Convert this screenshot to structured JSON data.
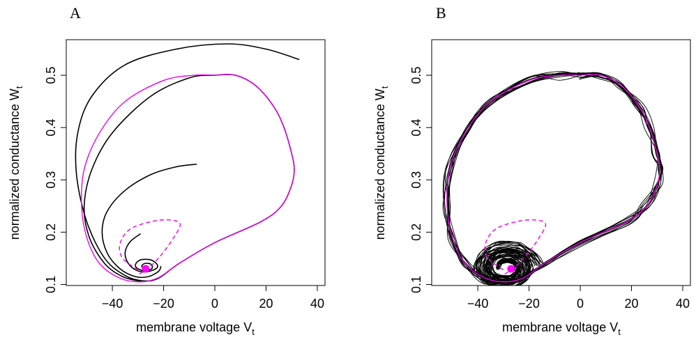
{
  "chart_data": [
    {
      "panel": "A",
      "type": "line",
      "xlabel": "membrane voltage",
      "xlabel_sub": "t",
      "ylabel": "normalized conductance",
      "ylabel_sub": "t",
      "xlim": [
        -58,
        43
      ],
      "ylim": [
        0.098,
        0.568
      ],
      "x_ticks": [
        -40,
        -20,
        0,
        20,
        40
      ],
      "x_tick_labels": [
        "−40",
        "−20",
        "0",
        "20",
        "40"
      ],
      "y_ticks": [
        0.1,
        0.2,
        0.3,
        0.4,
        0.5
      ],
      "y_tick_labels": [
        "0.1",
        "0.2",
        "0.3",
        "0.4",
        "0.5"
      ],
      "colors": {
        "trajectory": "#000000",
        "limit_cycle": "#ee00ee",
        "fixed_point": "#ff00ff"
      },
      "series": [
        {
          "style": "solid",
          "color": "#000000",
          "points": [
            [
              33,
              0.53
            ],
            [
              20,
              0.55
            ],
            [
              5,
              0.56
            ],
            [
              -15,
              0.55
            ],
            [
              -35,
              0.52
            ],
            [
              -48,
              0.46
            ],
            [
              -53.5,
              0.39
            ],
            [
              -54,
              0.31
            ],
            [
              -50,
              0.22
            ],
            [
              -43,
              0.15
            ],
            [
              -35,
              0.117
            ],
            [
              -28,
              0.107
            ],
            [
              -22,
              0.112
            ],
            [
              -14,
              0.14
            ],
            [
              0,
              0.18
            ],
            [
              18,
              0.22
            ],
            [
              26,
              0.25
            ],
            [
              30,
              0.29
            ],
            [
              31,
              0.32
            ],
            [
              30,
              0.35
            ],
            [
              27,
              0.4
            ],
            [
              23,
              0.44
            ],
            [
              16,
              0.48
            ],
            [
              8,
              0.5
            ],
            [
              0,
              0.5
            ],
            [
              -10,
              0.495
            ],
            [
              -25,
              0.46
            ],
            [
              -40,
              0.39
            ],
            [
              -48,
              0.32
            ],
            [
              -51,
              0.25
            ],
            [
              -49,
              0.19
            ],
            [
              -43,
              0.14
            ],
            [
              -36,
              0.115
            ],
            [
              -29,
              0.106
            ]
          ]
        },
        {
          "style": "solid",
          "color": "#000000",
          "points": [
            [
              -7,
              0.33
            ],
            [
              -15,
              0.325
            ],
            [
              -25,
              0.31
            ],
            [
              -35,
              0.28
            ],
            [
              -42,
              0.24
            ],
            [
              -44,
              0.2
            ],
            [
              -42,
              0.16
            ],
            [
              -37,
              0.13
            ],
            [
              -31,
              0.115
            ],
            [
              -26,
              0.115
            ],
            [
              -22,
              0.125
            ],
            [
              -21,
              0.135
            ]
          ]
        },
        {
          "style": "solid",
          "color": "#000000",
          "points": [
            [
              -29,
              0.197
            ],
            [
              -33,
              0.182
            ],
            [
              -35,
              0.162
            ],
            [
              -34,
              0.142
            ],
            [
              -31,
              0.128
            ],
            [
              -27,
              0.124
            ],
            [
              -23,
              0.13
            ],
            [
              -22.5,
              0.138
            ],
            [
              -25,
              0.147
            ],
            [
              -29,
              0.147
            ],
            [
              -31,
              0.138
            ],
            [
              -30,
              0.13
            ],
            [
              -27,
              0.126
            ],
            [
              -24.5,
              0.131
            ],
            [
              -25,
              0.139
            ],
            [
              -27.5,
              0.14
            ],
            [
              -28.5,
              0.134
            ],
            [
              -27,
              0.129
            ]
          ]
        },
        {
          "style": "solid",
          "color": "#ee00ee",
          "points": [
            [
              0,
              0.5
            ],
            [
              8,
              0.5
            ],
            [
              16,
              0.48
            ],
            [
              23,
              0.44
            ],
            [
              27,
              0.4
            ],
            [
              30,
              0.35
            ],
            [
              31,
              0.32
            ],
            [
              30,
              0.29
            ],
            [
              26,
              0.25
            ],
            [
              18,
              0.22
            ],
            [
              0,
              0.18
            ],
            [
              -14,
              0.14
            ],
            [
              -22,
              0.113
            ],
            [
              -29,
              0.105
            ],
            [
              -37,
              0.112
            ],
            [
              -45,
              0.14
            ],
            [
              -50,
              0.19
            ],
            [
              -52,
              0.25
            ],
            [
              -51,
              0.32
            ],
            [
              -45,
              0.39
            ],
            [
              -35,
              0.45
            ],
            [
              -20,
              0.49
            ],
            [
              -8,
              0.5
            ],
            [
              0,
              0.5
            ]
          ]
        },
        {
          "style": "dashed",
          "color": "#ee00ee",
          "points": [
            [
              -30,
              0.128
            ],
            [
              -36,
              0.15
            ],
            [
              -37,
              0.178
            ],
            [
              -33,
              0.206
            ],
            [
              -24,
              0.221
            ],
            [
              -17,
              0.223
            ],
            [
              -13.5,
              0.215
            ],
            [
              -16,
              0.19
            ],
            [
              -20,
              0.162
            ],
            [
              -24,
              0.14
            ],
            [
              -27,
              0.128
            ],
            [
              -30,
              0.118
            ]
          ]
        }
      ],
      "fixed_point": {
        "x": -27,
        "y": 0.13
      }
    },
    {
      "panel": "B",
      "type": "line",
      "xlabel": "membrane voltage",
      "xlabel_sub": "t",
      "ylabel": "normalized conductance",
      "ylabel_sub": "t",
      "xlim": [
        -58,
        43
      ],
      "ylim": [
        0.098,
        0.568
      ],
      "x_ticks": [
        -40,
        -20,
        0,
        20,
        40
      ],
      "x_tick_labels": [
        "−40",
        "−20",
        "0",
        "20",
        "40"
      ],
      "y_ticks": [
        0.1,
        0.2,
        0.3,
        0.4,
        0.5
      ],
      "y_tick_labels": [
        "0.1",
        "0.2",
        "0.3",
        "0.4",
        "0.5"
      ],
      "noisy_trajectory_count": 14,
      "colors": {
        "trajectory": "#000000",
        "limit_cycle": "#ee00ee",
        "fixed_point": "#ff00ff"
      },
      "series": [
        {
          "style": "solid",
          "color": "#ee00ee",
          "points": [
            [
              0,
              0.5
            ],
            [
              8,
              0.5
            ],
            [
              16,
              0.48
            ],
            [
              23,
              0.44
            ],
            [
              27,
              0.4
            ],
            [
              30,
              0.35
            ],
            [
              31,
              0.32
            ],
            [
              30,
              0.29
            ],
            [
              26,
              0.25
            ],
            [
              18,
              0.22
            ],
            [
              0,
              0.18
            ],
            [
              -14,
              0.14
            ],
            [
              -22,
              0.113
            ],
            [
              -29,
              0.105
            ],
            [
              -37,
              0.112
            ],
            [
              -45,
              0.14
            ],
            [
              -50,
              0.19
            ],
            [
              -52,
              0.25
            ],
            [
              -51,
              0.32
            ],
            [
              -45,
              0.39
            ],
            [
              -35,
              0.45
            ],
            [
              -20,
              0.49
            ],
            [
              -8,
              0.5
            ],
            [
              0,
              0.5
            ]
          ]
        },
        {
          "style": "dashed",
          "color": "#ee00ee",
          "points": [
            [
              -30,
              0.128
            ],
            [
              -36,
              0.15
            ],
            [
              -37,
              0.178
            ],
            [
              -33,
              0.206
            ],
            [
              -24,
              0.221
            ],
            [
              -17,
              0.223
            ],
            [
              -13.5,
              0.215
            ],
            [
              -16,
              0.19
            ],
            [
              -20,
              0.162
            ],
            [
              -24,
              0.14
            ],
            [
              -27,
              0.128
            ],
            [
              -30,
              0.118
            ]
          ]
        }
      ],
      "fixed_point": {
        "x": -27,
        "y": 0.13
      }
    }
  ]
}
